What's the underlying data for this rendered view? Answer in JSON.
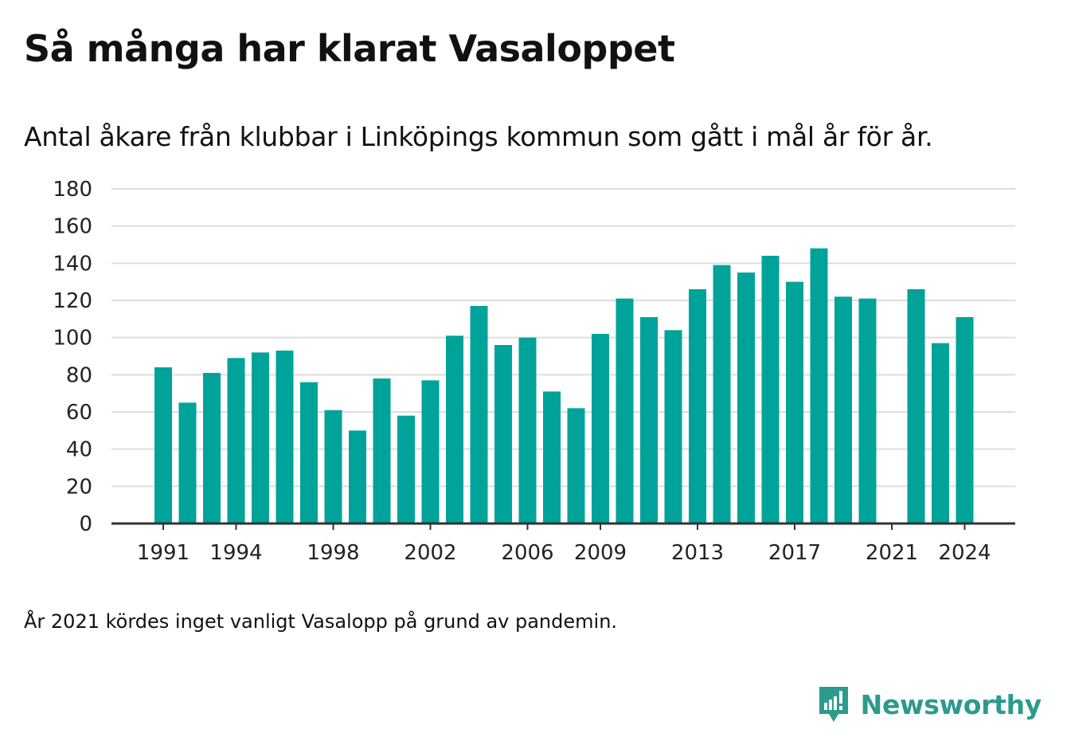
{
  "title": "Så många har klarat Vasaloppet",
  "subtitle": "Antal åkare från klubbar i Linköpings kommun som gått i mål år för år.",
  "note": "År 2021 kördes inget vanligt Vasalopp på grund av pandemin.",
  "brand": {
    "name": "Newsworthy",
    "color": "#2c9a8d",
    "icon": "newsworthy-chart-bubble-icon"
  },
  "chart_data": {
    "type": "bar",
    "categories": [
      1991,
      1992,
      1993,
      1994,
      1995,
      1996,
      1997,
      1998,
      1999,
      2000,
      2001,
      2002,
      2003,
      2004,
      2005,
      2006,
      2007,
      2008,
      2009,
      2010,
      2011,
      2012,
      2013,
      2014,
      2015,
      2016,
      2017,
      2018,
      2019,
      2020,
      2021,
      2022,
      2023,
      2024
    ],
    "values": [
      84,
      65,
      81,
      89,
      92,
      93,
      76,
      61,
      50,
      78,
      58,
      77,
      101,
      117,
      96,
      100,
      71,
      62,
      102,
      121,
      111,
      104,
      126,
      139,
      135,
      144,
      130,
      148,
      122,
      121,
      null,
      126,
      97,
      111
    ],
    "x_tick_labels": [
      "1991",
      "1994",
      "1998",
      "2002",
      "2006",
      "2009",
      "2013",
      "2017",
      "2021",
      "2024"
    ],
    "y_ticks": [
      0,
      20,
      40,
      60,
      80,
      100,
      120,
      140,
      160,
      180
    ],
    "ylim": [
      0,
      180
    ],
    "grid": true,
    "bar_color": "#00a39a",
    "grid_color": "#dddddd",
    "axis_color": "#333333"
  }
}
